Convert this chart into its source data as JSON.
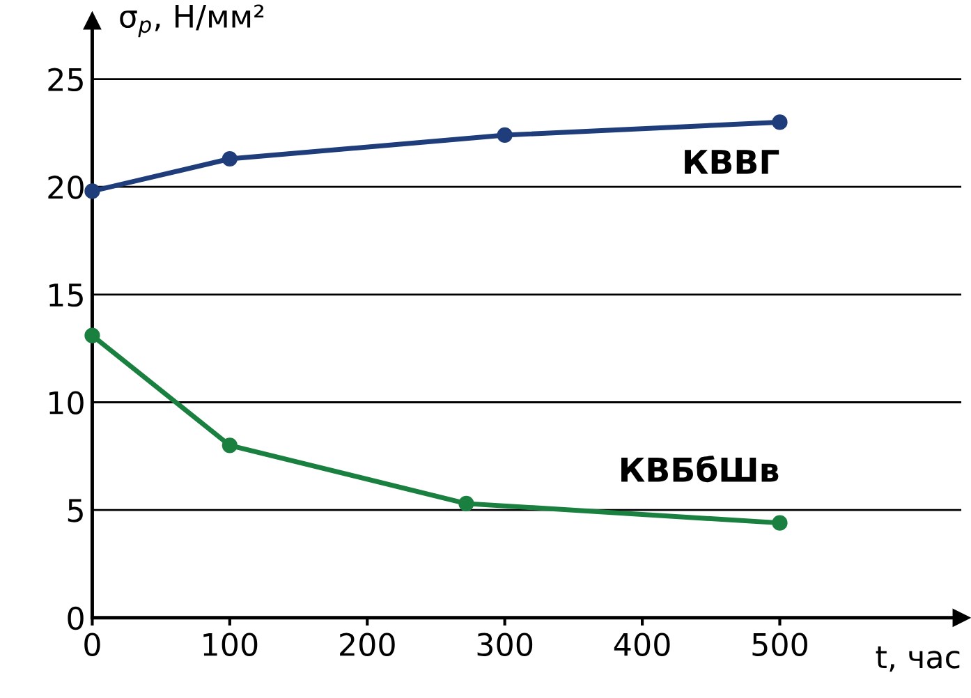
{
  "chart_data": {
    "type": "line",
    "xlabel": "t, час",
    "ylabel": "σ$_{p}$, Н/мм²",
    "xlim": [
      0,
      632
    ],
    "xticks": [
      0,
      100,
      200,
      300,
      400,
      500
    ],
    "ylim": [
      0,
      27.7
    ],
    "yticks": [
      0,
      5,
      10,
      15,
      20,
      25
    ],
    "grid": "y",
    "legend": false,
    "marker": "circle",
    "line_style": "solid",
    "series": [
      {
        "name": "КВВГ",
        "color": "#1f3d7a",
        "x": [
          0,
          100,
          300,
          500
        ],
        "values": [
          19.8,
          21.3,
          22.4,
          23.0
        ]
      },
      {
        "name": "КВБбШв",
        "color": "#1a8040",
        "x": [
          0,
          100,
          272,
          500
        ],
        "values": [
          13.1,
          8.0,
          5.3,
          4.4
        ]
      }
    ]
  }
}
